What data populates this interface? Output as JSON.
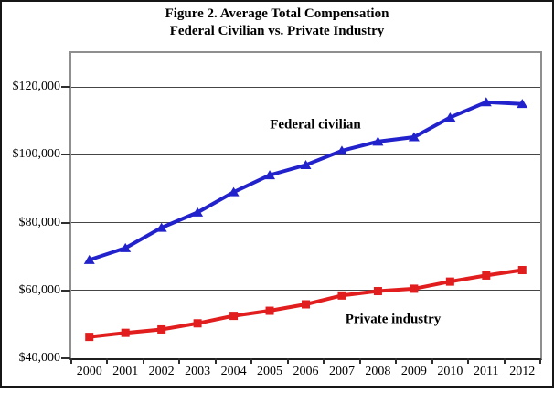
{
  "figure": {
    "title_line1": "Figure 2. Average Total Compensation",
    "title_line2": "Federal Civilian vs. Private Industry"
  },
  "chart_data": {
    "type": "line",
    "title": "Figure 2. Average Total Compensation — Federal Civilian vs. Private Industry",
    "categories": [
      "2000",
      "2001",
      "2002",
      "2003",
      "2004",
      "2005",
      "2006",
      "2007",
      "2008",
      "2009",
      "2010",
      "2011",
      "2012"
    ],
    "series": [
      {
        "name": "Federal civilian",
        "color": "#2222cc",
        "marker": "triangle",
        "values": [
          69000,
          72500,
          78500,
          83000,
          89000,
          94000,
          97000,
          101200,
          103900,
          105200,
          111000,
          115500,
          115000
        ]
      },
      {
        "name": "Private industry",
        "color": "#e11d1d",
        "marker": "square",
        "values": [
          46300,
          47500,
          48500,
          50300,
          52500,
          54000,
          55900,
          58500,
          59800,
          60500,
          62600,
          64400,
          66000
        ]
      }
    ],
    "y_ticks": [
      {
        "value": 120000,
        "label": "$120,000"
      },
      {
        "value": 100000,
        "label": "$100,000"
      },
      {
        "value": 80000,
        "label": "$80,000"
      },
      {
        "value": 60000,
        "label": "$60,000"
      },
      {
        "value": 40000,
        "label": "$40,000"
      }
    ],
    "ylim": [
      40000,
      130000
    ],
    "xlabel": "",
    "ylabel": "",
    "grid": "horizontal",
    "legend": "inline-annotations",
    "annotation_labels": [
      "Federal civilian",
      "Private industry"
    ]
  }
}
